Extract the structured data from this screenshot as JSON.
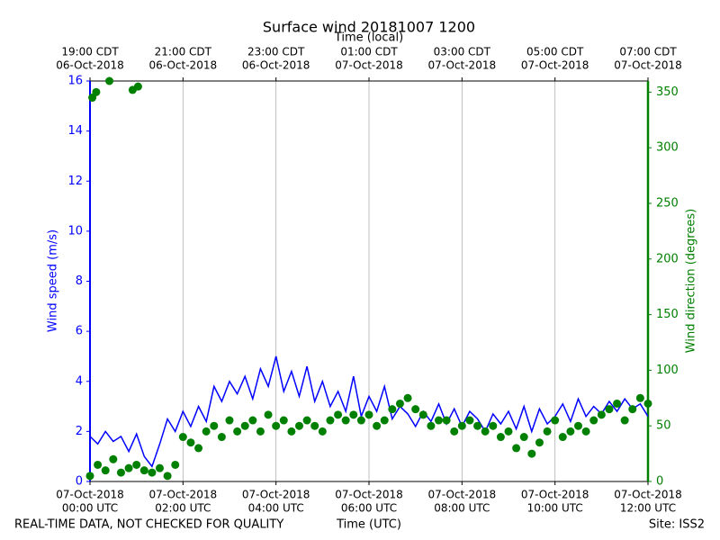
{
  "chart_data": {
    "type": "line",
    "title": "Surface wind 20181007 1200",
    "top_xlabel": "Time (local)",
    "xlabel": "Time (UTC)",
    "ylabel": "Wind speed (m/s)",
    "y2label": "Wind direction (degrees)",
    "note": "REAL-TIME DATA, NOT CHECKED FOR QUALITY",
    "site": "Site: ISS2",
    "grid": true,
    "xlim": [
      0,
      720
    ],
    "xticks": [
      {
        "value": 0,
        "label": [
          "07-Oct-2018",
          "00:00 UTC"
        ]
      },
      {
        "value": 120,
        "label": [
          "07-Oct-2018",
          "02:00 UTC"
        ]
      },
      {
        "value": 240,
        "label": [
          "07-Oct-2018",
          "04:00 UTC"
        ]
      },
      {
        "value": 360,
        "label": [
          "07-Oct-2018",
          "06:00 UTC"
        ]
      },
      {
        "value": 480,
        "label": [
          "07-Oct-2018",
          "08:00 UTC"
        ]
      },
      {
        "value": 600,
        "label": [
          "07-Oct-2018",
          "10:00 UTC"
        ]
      },
      {
        "value": 720,
        "label": [
          "07-Oct-2018",
          "12:00 UTC"
        ]
      }
    ],
    "top_xticks": [
      {
        "value": 0,
        "label": [
          "19:00 CDT",
          "06-Oct-2018"
        ]
      },
      {
        "value": 120,
        "label": [
          "21:00 CDT",
          "06-Oct-2018"
        ]
      },
      {
        "value": 240,
        "label": [
          "23:00 CDT",
          "06-Oct-2018"
        ]
      },
      {
        "value": 360,
        "label": [
          "01:00 CDT",
          "07-Oct-2018"
        ]
      },
      {
        "value": 480,
        "label": [
          "03:00 CDT",
          "07-Oct-2018"
        ]
      },
      {
        "value": 600,
        "label": [
          "05:00 CDT",
          "07-Oct-2018"
        ]
      },
      {
        "value": 720,
        "label": [
          "07:00 CDT",
          "07-Oct-2018"
        ]
      }
    ],
    "ylim": [
      0,
      16
    ],
    "yticks": [
      0,
      2,
      4,
      6,
      8,
      10,
      12,
      14,
      16
    ],
    "y2lim": [
      0,
      360
    ],
    "y2ticks": [
      0,
      50,
      100,
      150,
      200,
      250,
      300,
      350
    ],
    "x": [
      0,
      10,
      20,
      30,
      40,
      50,
      60,
      70,
      80,
      90,
      100,
      110,
      120,
      130,
      140,
      150,
      160,
      170,
      180,
      190,
      200,
      210,
      220,
      230,
      240,
      250,
      260,
      270,
      280,
      290,
      300,
      310,
      320,
      330,
      340,
      350,
      360,
      370,
      380,
      390,
      400,
      410,
      420,
      430,
      440,
      450,
      460,
      470,
      480,
      490,
      500,
      510,
      520,
      530,
      540,
      550,
      560,
      570,
      580,
      590,
      600,
      610,
      620,
      630,
      640,
      650,
      660,
      670,
      680,
      690,
      700,
      710,
      720
    ],
    "series": [
      {
        "color": "#0000ff",
        "axis": "y",
        "values": [
          1.8,
          1.5,
          2.0,
          1.6,
          1.8,
          1.2,
          1.9,
          1.0,
          0.6,
          1.5,
          2.5,
          2.0,
          2.8,
          2.2,
          3.0,
          2.4,
          3.8,
          3.2,
          4.0,
          3.5,
          4.2,
          3.3,
          4.5,
          3.8,
          5.0,
          3.6,
          4.4,
          3.4,
          4.6,
          3.2,
          4.0,
          3.0,
          3.6,
          2.8,
          4.2,
          2.6,
          3.4,
          2.8,
          3.8,
          2.5,
          3.0,
          2.7,
          2.2,
          2.8,
          2.4,
          3.1,
          2.3,
          2.9,
          2.2,
          2.8,
          2.5,
          2.0,
          2.7,
          2.3,
          2.8,
          2.1,
          3.0,
          2.0,
          2.9,
          2.3,
          2.6,
          3.1,
          2.4,
          3.3,
          2.6,
          3.0,
          2.7,
          3.2,
          2.8,
          3.3,
          2.9,
          3.1,
          2.6
        ]
      },
      {
        "type": "scatter",
        "color": "#008000",
        "axis": "y2",
        "x": [
          0,
          3,
          8,
          10,
          20,
          25,
          30,
          40,
          50,
          55,
          60,
          62,
          70,
          80,
          90,
          100,
          110,
          120,
          130,
          140,
          150,
          160,
          170,
          180,
          190,
          200,
          210,
          220,
          230,
          240,
          250,
          260,
          270,
          280,
          290,
          300,
          310,
          320,
          330,
          340,
          350,
          360,
          370,
          380,
          390,
          400,
          410,
          420,
          430,
          440,
          450,
          460,
          470,
          480,
          490,
          500,
          510,
          520,
          530,
          540,
          550,
          560,
          570,
          580,
          590,
          600,
          610,
          620,
          630,
          640,
          650,
          660,
          670,
          680,
          690,
          700,
          710,
          720
        ],
        "values": [
          5,
          345,
          350,
          15,
          10,
          360,
          20,
          8,
          12,
          352,
          15,
          355,
          10,
          8,
          12,
          5,
          15,
          40,
          35,
          30,
          45,
          50,
          40,
          55,
          45,
          50,
          55,
          45,
          60,
          50,
          55,
          45,
          50,
          55,
          50,
          45,
          55,
          60,
          55,
          60,
          55,
          60,
          50,
          55,
          65,
          70,
          75,
          65,
          60,
          50,
          55,
          55,
          45,
          50,
          55,
          50,
          45,
          50,
          40,
          45,
          30,
          40,
          25,
          35,
          45,
          55,
          40,
          45,
          50,
          45,
          55,
          60,
          65,
          70,
          55,
          65,
          75,
          70
        ]
      }
    ]
  }
}
